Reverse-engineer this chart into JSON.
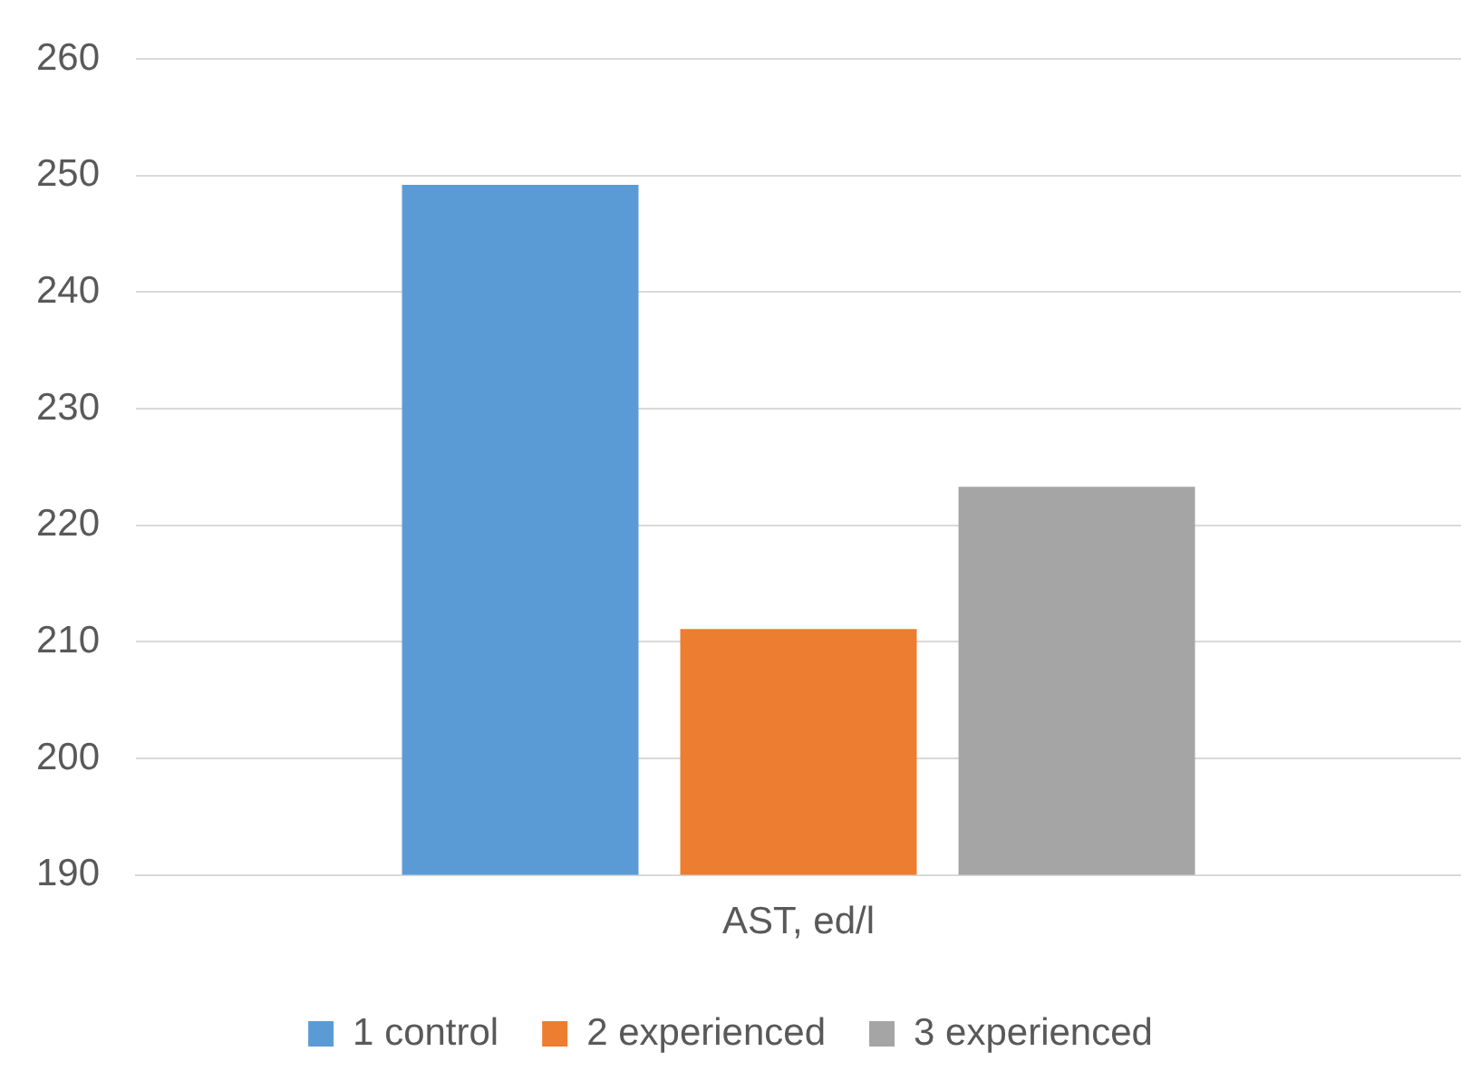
{
  "chart_data": {
    "type": "bar",
    "categories": [
      "AST, ed/l"
    ],
    "series": [
      {
        "name": "1 control",
        "color": "#5b9bd5",
        "values": [
          249.2
        ]
      },
      {
        "name": "2 experienced",
        "color": "#ed7d31",
        "values": [
          211.1
        ]
      },
      {
        "name": "3 experienced",
        "color": "#a5a5a5",
        "values": [
          223.3
        ]
      }
    ],
    "ylim": [
      190,
      260
    ],
    "yticks": [
      190,
      200,
      210,
      220,
      230,
      240,
      250,
      260
    ],
    "grid": "y",
    "legend": "bottom"
  }
}
